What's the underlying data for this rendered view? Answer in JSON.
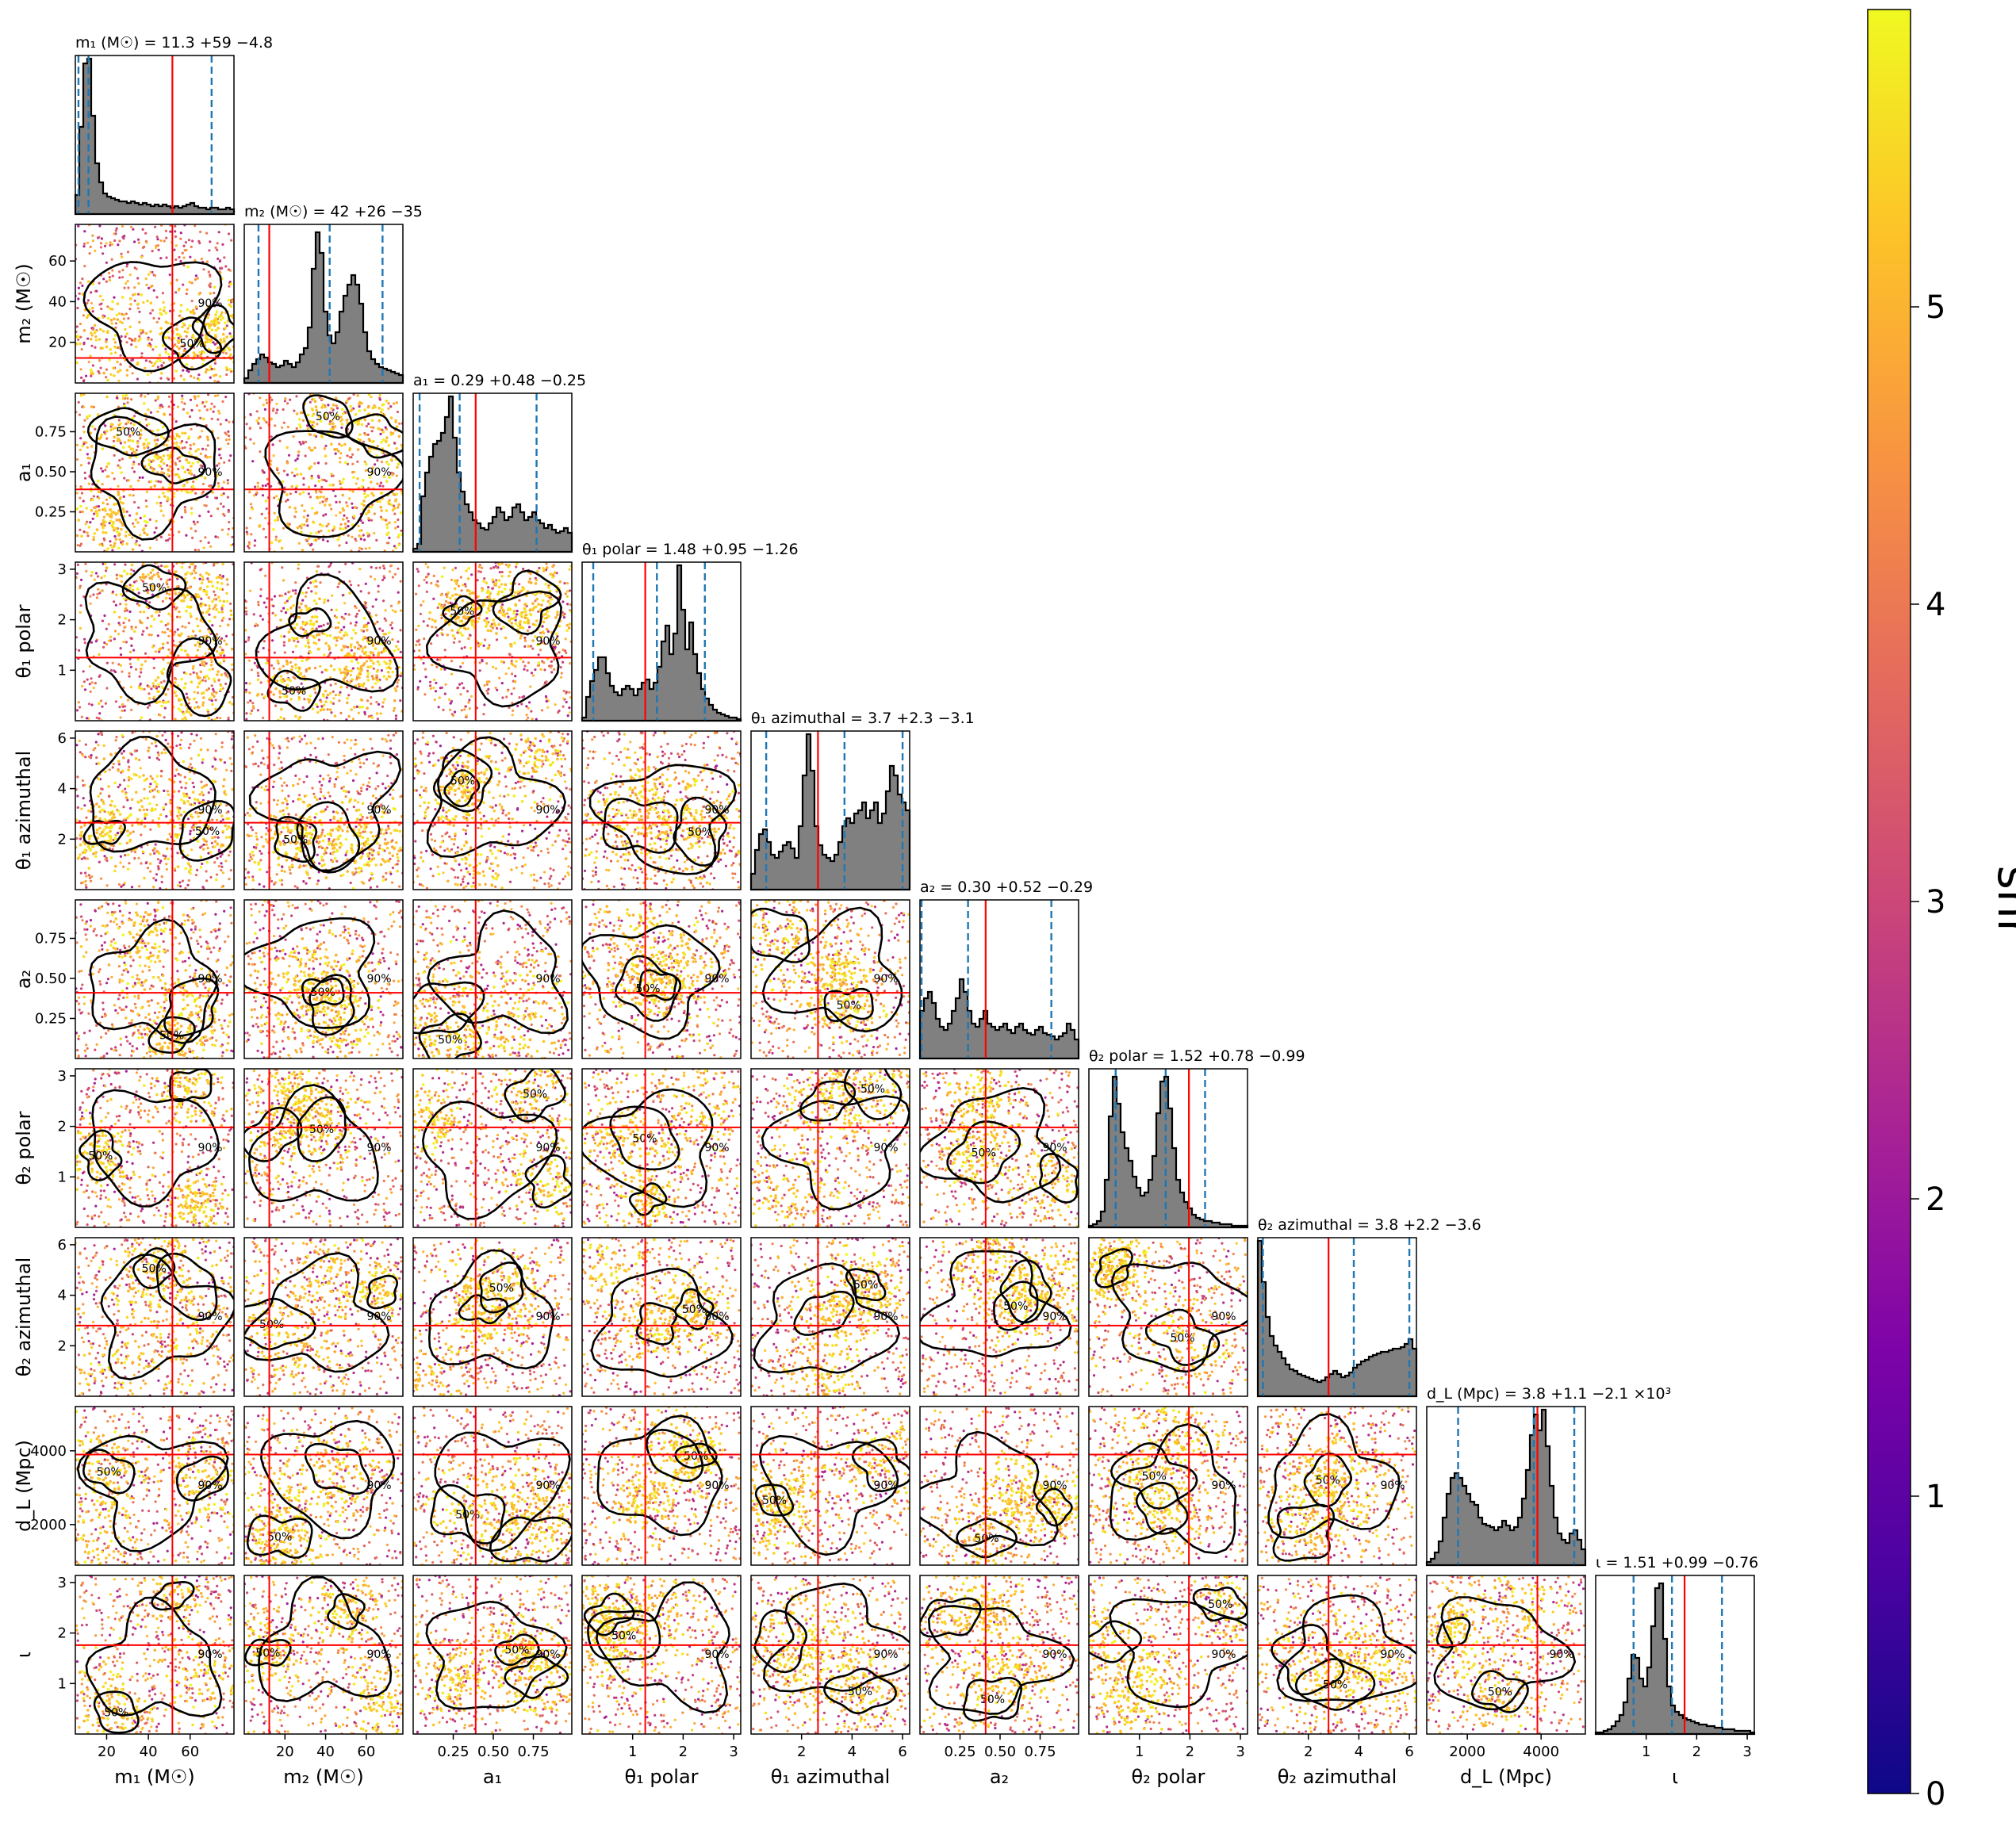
{
  "chart_data": {
    "type": "corner",
    "parameters": [
      {
        "key": "m1",
        "label": "m₁ (M☉)",
        "lo": 5,
        "hi": 81,
        "ticks": [
          20,
          40,
          60
        ],
        "ticklabels": [
          "20",
          "40",
          "60"
        ],
        "summary": "m₁ (M☉) = 11.3 +59 −4.8",
        "median": 11.3,
        "q_lo": 6.5,
        "q_hi": 70.3,
        "injection": 51.5,
        "hist": [
          0.12,
          0.55,
          0.95,
          0.98,
          0.62,
          0.32,
          0.2,
          0.13,
          0.11,
          0.1,
          0.09,
          0.08,
          0.08,
          0.07,
          0.08,
          0.07,
          0.06,
          0.07,
          0.06,
          0.05,
          0.06,
          0.05,
          0.06,
          0.05,
          0.04,
          0.05,
          0.04,
          0.05,
          0.06,
          0.07,
          0.05,
          0.04,
          0.04,
          0.03,
          0.04,
          0.04,
          0.03,
          0.03,
          0.04,
          0.03
        ]
      },
      {
        "key": "m2",
        "label": "m₂ (M☉)",
        "lo": 0,
        "hi": 78,
        "ticks": [
          20,
          40,
          60
        ],
        "ticklabels": [
          "20",
          "40",
          "60"
        ],
        "summary": "m₂ (M☉) = 42 +26 −35",
        "median": 42,
        "q_lo": 7,
        "q_hi": 68,
        "injection": 12.3,
        "hist": [
          0.03,
          0.08,
          0.12,
          0.15,
          0.18,
          0.16,
          0.13,
          0.12,
          0.1,
          0.11,
          0.14,
          0.12,
          0.1,
          0.13,
          0.18,
          0.22,
          0.35,
          0.72,
          0.95,
          0.82,
          0.45,
          0.3,
          0.25,
          0.32,
          0.45,
          0.55,
          0.62,
          0.68,
          0.62,
          0.5,
          0.32,
          0.2,
          0.15,
          0.12,
          0.1,
          0.09,
          0.08,
          0.07,
          0.06,
          0.05
        ]
      },
      {
        "key": "a1",
        "label": "a₁",
        "lo": 0.0,
        "hi": 0.99,
        "ticks": [
          0.25,
          0.5,
          0.75
        ],
        "ticklabels": [
          "0.25",
          "0.50",
          "0.75"
        ],
        "summary": "a₁ = 0.29 +0.48 −0.25",
        "median": 0.29,
        "q_lo": 0.04,
        "q_hi": 0.77,
        "injection": 0.39,
        "hist": [
          0.02,
          0.05,
          0.35,
          0.5,
          0.6,
          0.68,
          0.7,
          0.75,
          0.85,
          0.98,
          0.72,
          0.5,
          0.38,
          0.3,
          0.25,
          0.2,
          0.18,
          0.15,
          0.14,
          0.18,
          0.22,
          0.28,
          0.25,
          0.2,
          0.22,
          0.28,
          0.3,
          0.25,
          0.2,
          0.22,
          0.25,
          0.2,
          0.18,
          0.15,
          0.17,
          0.14,
          0.12,
          0.13,
          0.15,
          0.12
        ]
      },
      {
        "key": "t1p",
        "label": "θ₁ polar",
        "lo": 0.0,
        "hi": 3.14,
        "ticks": [
          1,
          2,
          3
        ],
        "ticklabels": [
          "1",
          "2",
          "3"
        ],
        "summary": "θ₁ polar = 1.48 +0.95 −1.26",
        "median": 1.48,
        "q_lo": 0.22,
        "q_hi": 2.43,
        "injection": 1.25,
        "hist": [
          0.02,
          0.15,
          0.25,
          0.32,
          0.4,
          0.4,
          0.3,
          0.22,
          0.18,
          0.16,
          0.2,
          0.22,
          0.2,
          0.16,
          0.2,
          0.24,
          0.26,
          0.2,
          0.24,
          0.34,
          0.5,
          0.6,
          0.42,
          0.55,
          0.98,
          0.7,
          0.45,
          0.62,
          0.42,
          0.3,
          0.2,
          0.14,
          0.1,
          0.07,
          0.05,
          0.04,
          0.03,
          0.02,
          0.02,
          0.01
        ]
      },
      {
        "key": "t1a",
        "label": "θ₁ azimuthal",
        "lo": 0.0,
        "hi": 6.28,
        "ticks": [
          2,
          4,
          6
        ],
        "ticklabels": [
          "2",
          "4",
          "6"
        ],
        "summary": "θ₁ azimuthal = 3.7 +2.3 −3.1",
        "median": 3.7,
        "q_lo": 0.6,
        "q_hi": 6.0,
        "injection": 2.65,
        "hist": [
          0.1,
          0.25,
          0.35,
          0.38,
          0.3,
          0.22,
          0.2,
          0.24,
          0.28,
          0.3,
          0.26,
          0.2,
          0.4,
          0.72,
          0.98,
          0.75,
          0.4,
          0.28,
          0.22,
          0.2,
          0.18,
          0.22,
          0.3,
          0.4,
          0.45,
          0.42,
          0.48,
          0.5,
          0.55,
          0.45,
          0.5,
          0.55,
          0.42,
          0.48,
          0.62,
          0.78,
          0.72,
          0.6,
          0.55,
          0.5
        ]
      },
      {
        "key": "a2",
        "label": "a₂",
        "lo": 0.0,
        "hi": 0.99,
        "ticks": [
          0.25,
          0.5,
          0.75
        ],
        "ticklabels": [
          "0.25",
          "0.50",
          "0.75"
        ],
        "summary": "a₂ = 0.30 +0.52 −0.29",
        "median": 0.3,
        "q_lo": 0.01,
        "q_hi": 0.82,
        "injection": 0.41,
        "hist": [
          0.3,
          0.38,
          0.42,
          0.35,
          0.25,
          0.2,
          0.18,
          0.22,
          0.3,
          0.38,
          0.5,
          0.42,
          0.3,
          0.22,
          0.2,
          0.25,
          0.3,
          0.22,
          0.2,
          0.18,
          0.2,
          0.22,
          0.18,
          0.16,
          0.2,
          0.22,
          0.18,
          0.16,
          0.15,
          0.18,
          0.2,
          0.16,
          0.15,
          0.14,
          0.12,
          0.14,
          0.16,
          0.22,
          0.18,
          0.12
        ]
      },
      {
        "key": "t2p",
        "label": "θ₂ polar",
        "lo": 0.0,
        "hi": 3.14,
        "ticks": [
          1,
          2,
          3
        ],
        "ticklabels": [
          "1",
          "2",
          "3"
        ],
        "summary": "θ₂ polar = 1.52 +0.78 −0.99",
        "median": 1.52,
        "q_lo": 0.53,
        "q_hi": 2.3,
        "injection": 1.98,
        "hist": [
          0.01,
          0.02,
          0.04,
          0.1,
          0.3,
          0.7,
          0.95,
          0.78,
          0.6,
          0.5,
          0.42,
          0.32,
          0.25,
          0.2,
          0.22,
          0.3,
          0.45,
          0.72,
          0.92,
          0.95,
          0.75,
          0.5,
          0.3,
          0.22,
          0.16,
          0.12,
          0.08,
          0.06,
          0.05,
          0.04,
          0.04,
          0.03,
          0.03,
          0.02,
          0.02,
          0.02,
          0.01,
          0.01,
          0.01,
          0.01
        ]
      },
      {
        "key": "t2a",
        "label": "θ₂ azimuthal",
        "lo": 0.0,
        "hi": 6.28,
        "ticks": [
          2,
          4,
          6
        ],
        "ticklabels": [
          "2",
          "4",
          "6"
        ],
        "summary": "θ₂ azimuthal = 3.8 +2.2 −3.6",
        "median": 3.8,
        "q_lo": 0.2,
        "q_hi": 6.0,
        "injection": 2.8,
        "hist": [
          0.98,
          0.72,
          0.5,
          0.38,
          0.32,
          0.28,
          0.24,
          0.2,
          0.17,
          0.16,
          0.14,
          0.13,
          0.12,
          0.11,
          0.1,
          0.09,
          0.1,
          0.12,
          0.14,
          0.16,
          0.14,
          0.12,
          0.13,
          0.15,
          0.18,
          0.2,
          0.22,
          0.23,
          0.25,
          0.26,
          0.27,
          0.28,
          0.28,
          0.29,
          0.3,
          0.3,
          0.31,
          0.33,
          0.36,
          0.3
        ]
      },
      {
        "key": "dl",
        "label": "d_L (Mpc)",
        "lo": 900,
        "hi": 5200,
        "ticks": [
          2000,
          4000
        ],
        "ticklabels": [
          "2000",
          "4000"
        ],
        "summary": "d_L (Mpc) = 3.8 +1.1 −2.1 ×10³",
        "median": 3800,
        "q_lo": 1750,
        "q_hi": 4900,
        "injection": 3900,
        "hist": [
          0.02,
          0.04,
          0.08,
          0.15,
          0.3,
          0.45,
          0.55,
          0.58,
          0.55,
          0.5,
          0.45,
          0.4,
          0.38,
          0.3,
          0.26,
          0.25,
          0.24,
          0.22,
          0.24,
          0.28,
          0.25,
          0.22,
          0.24,
          0.3,
          0.42,
          0.6,
          0.82,
          0.95,
          0.85,
          0.98,
          0.75,
          0.5,
          0.3,
          0.2,
          0.16,
          0.14,
          0.2,
          0.22,
          0.16,
          0.1
        ]
      },
      {
        "key": "iota",
        "label": "ι",
        "lo": 0.0,
        "hi": 3.14,
        "ticks": [
          1,
          2,
          3
        ],
        "ticklabels": [
          "1",
          "2",
          "3"
        ],
        "summary": "ι = 1.51 +0.99 −0.76",
        "median": 1.51,
        "q_lo": 0.75,
        "q_hi": 2.5,
        "injection": 1.76,
        "hist": [
          0.01,
          0.01,
          0.02,
          0.03,
          0.05,
          0.08,
          0.12,
          0.2,
          0.35,
          0.5,
          0.48,
          0.35,
          0.3,
          0.42,
          0.68,
          0.92,
          0.95,
          0.6,
          0.3,
          0.18,
          0.14,
          0.12,
          0.1,
          0.09,
          0.08,
          0.07,
          0.06,
          0.06,
          0.05,
          0.05,
          0.04,
          0.04,
          0.03,
          0.03,
          0.03,
          0.02,
          0.02,
          0.02,
          0.02,
          0.01
        ]
      }
    ],
    "contour_levels": [
      "50%",
      "90%"
    ],
    "colorbar": {
      "label": "snr",
      "min": 0,
      "max": 6,
      "ticks": [
        0,
        1,
        2,
        3,
        4,
        5
      ],
      "colormap": "plasma"
    },
    "colors": {
      "histogram_fill": "#808080",
      "median_line": "#ff0000",
      "quantile_line": "#1f77b4",
      "contour": "#000000"
    }
  }
}
